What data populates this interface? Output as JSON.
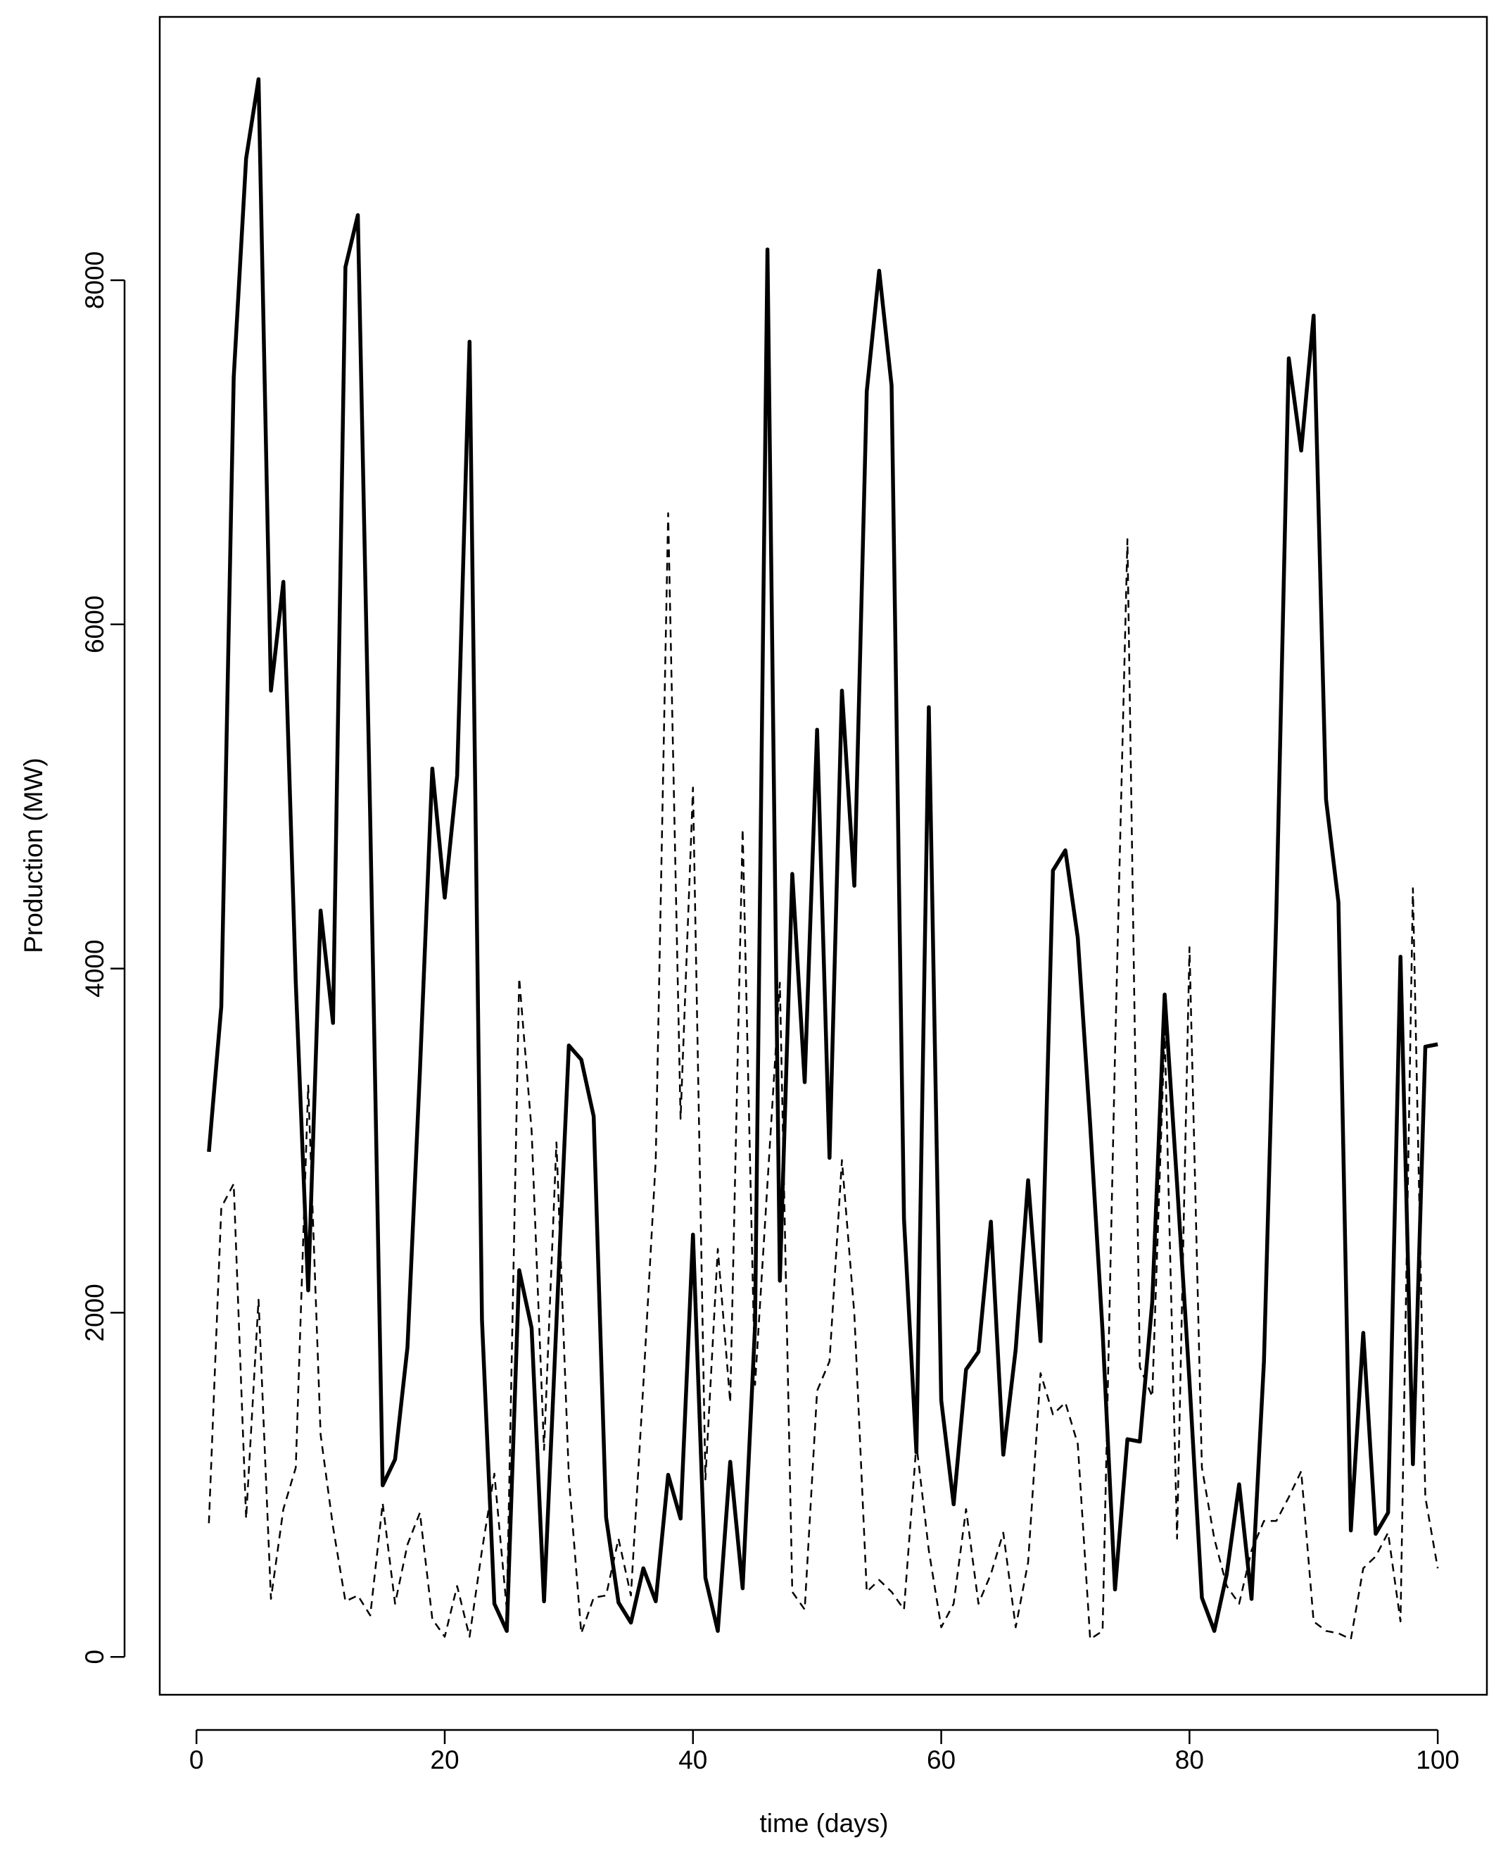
{
  "chart_data": {
    "type": "line",
    "x_label": "time (days)",
    "y_label": "Production (MW)",
    "x": [
      1,
      2,
      3,
      4,
      5,
      6,
      7,
      8,
      9,
      10,
      11,
      12,
      13,
      14,
      15,
      16,
      17,
      18,
      19,
      20,
      21,
      22,
      23,
      24,
      25,
      26,
      27,
      28,
      29,
      30,
      31,
      32,
      33,
      34,
      35,
      36,
      37,
      38,
      39,
      40,
      41,
      42,
      43,
      44,
      45,
      46,
      47,
      48,
      49,
      50,
      51,
      52,
      53,
      54,
      55,
      56,
      57,
      58,
      59,
      60,
      61,
      62,
      63,
      64,
      65,
      66,
      67,
      68,
      69,
      70,
      71,
      72,
      73,
      74,
      75,
      76,
      77,
      78,
      79,
      80,
      81,
      82,
      83,
      84,
      85,
      86,
      87,
      88,
      89,
      90,
      91,
      92,
      93,
      94,
      95,
      96,
      97,
      98,
      99,
      100
    ],
    "series": [
      {
        "color": "#000000",
        "line_style": "solid",
        "values": [
          2935,
          3780,
          7436,
          8708,
          9168,
          5615,
          6247,
          3917,
          2130,
          4337,
          3684,
          8076,
          8378,
          4859,
          997,
          1148,
          1801,
          3402,
          5162,
          4412,
          5120,
          7643,
          1959,
          309,
          151,
          2247,
          1911,
          323,
          1945,
          3553,
          3471,
          3141,
          811,
          316,
          199,
          515,
          323,
          1058,
          804,
          2454,
          460,
          151,
          1134,
          399,
          1924,
          8179,
          2186,
          4550,
          3340,
          5388,
          2900,
          5615,
          4481,
          7354,
          8055,
          7388,
          2543,
          1189,
          5519,
          1491,
          887,
          1670,
          1773,
          2529,
          1175,
          1787,
          2770,
          1835,
          4570,
          4687,
          4179,
          3093,
          1890,
          392,
          1265,
          1251,
          2062,
          3849,
          2749,
          1601,
          344,
          151,
          481,
          1003,
          337,
          1718,
          4330,
          7546,
          7010,
          7794,
          4983,
          4385,
          735,
          1883,
          715,
          838,
          4069,
          1120,
          3546,
          3560
        ]
      },
      {
        "color": "#000000",
        "line_style": "dashed",
        "values": [
          777,
          2612,
          2749,
          804,
          2076,
          337,
          859,
          1100,
          3320,
          1292,
          756,
          323,
          357,
          241,
          893,
          309,
          653,
          838,
          220,
          117,
          412,
          117,
          619,
          1065,
          275,
          3945,
          3058,
          1203,
          2990,
          1045,
          137,
          344,
          357,
          687,
          357,
          1581,
          2887,
          6646,
          3127,
          5052,
          1031,
          2371,
          1478,
          4811,
          1581,
          2749,
          3918,
          378,
          275,
          1546,
          1718,
          2887,
          1993,
          378,
          447,
          378,
          275,
          1237,
          619,
          172,
          309,
          859,
          309,
          481,
          722,
          172,
          550,
          1649,
          1409,
          1478,
          1237,
          103,
          151,
          3505,
          6495,
          1684,
          1512,
          3643,
          687,
          4124,
          1100,
          687,
          412,
          309,
          619,
          790,
          790,
          928,
          1079,
          206,
          151,
          137,
          103,
          515,
          584,
          722,
          206,
          4467,
          928,
          515
        ]
      }
    ],
    "xlim": [
      -2.96,
      103.96
    ],
    "ylim": [
      -220,
      9530
    ],
    "xticks": [
      0,
      20,
      40,
      60,
      80,
      100
    ],
    "yticks": [
      0,
      2000,
      4000,
      6000,
      8000
    ],
    "grid": false
  }
}
